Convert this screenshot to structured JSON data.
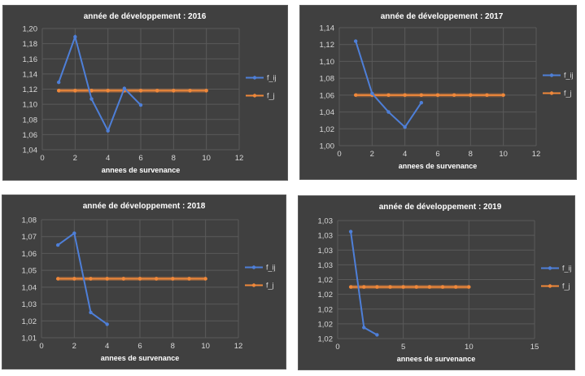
{
  "colors": {
    "f_ij": "#4e7fd8",
    "f_j": "#f0883a"
  },
  "chart_data": [
    {
      "type": "line",
      "title": "année de développement : 2016",
      "xlabel": "annees de survenance",
      "ylabel": "",
      "xlim": [
        0,
        12
      ],
      "ylim": [
        1.04,
        1.2
      ],
      "x_ticks": [
        "0",
        "2",
        "4",
        "6",
        "8",
        "10",
        "12"
      ],
      "y_ticks": [
        "1,04",
        "1,06",
        "1,08",
        "1,10",
        "1,12",
        "1,14",
        "1,16",
        "1,18",
        "1,20"
      ],
      "legend_position": "right",
      "series": [
        {
          "name": "f_ij",
          "x": [
            1,
            2,
            3,
            4,
            5,
            6
          ],
          "y": [
            1.129,
            1.189,
            1.107,
            1.065,
            1.121,
            1.099
          ]
        },
        {
          "name": "f_j",
          "x": [
            1,
            2,
            3,
            4,
            5,
            6,
            7,
            8,
            9,
            10
          ],
          "y": [
            1.118,
            1.118,
            1.118,
            1.118,
            1.118,
            1.118,
            1.118,
            1.118,
            1.118,
            1.118
          ]
        }
      ]
    },
    {
      "type": "line",
      "title": "année de développement : 2017",
      "xlabel": "annees de survenance",
      "ylabel": "",
      "xlim": [
        0,
        12
      ],
      "ylim": [
        1.0,
        1.14
      ],
      "x_ticks": [
        "0",
        "2",
        "4",
        "6",
        "8",
        "10",
        "12"
      ],
      "y_ticks": [
        "1,00",
        "1,02",
        "1,04",
        "1,06",
        "1,08",
        "1,10",
        "1,12",
        "1,14"
      ],
      "legend_position": "right",
      "series": [
        {
          "name": "f_ij",
          "x": [
            1,
            2,
            3,
            4,
            5
          ],
          "y": [
            1.124,
            1.062,
            1.04,
            1.022,
            1.051
          ]
        },
        {
          "name": "f_j",
          "x": [
            1,
            2,
            3,
            4,
            5,
            6,
            7,
            8,
            9,
            10
          ],
          "y": [
            1.06,
            1.06,
            1.06,
            1.06,
            1.06,
            1.06,
            1.06,
            1.06,
            1.06,
            1.06
          ]
        }
      ]
    },
    {
      "type": "line",
      "title": "année de développement : 2018",
      "xlabel": "annees de survenance",
      "ylabel": "",
      "xlim": [
        0,
        12
      ],
      "ylim": [
        1.01,
        1.08
      ],
      "x_ticks": [
        "0",
        "2",
        "4",
        "6",
        "8",
        "10",
        "12"
      ],
      "y_ticks": [
        "1,01",
        "1,02",
        "1,03",
        "1,04",
        "1,05",
        "1,06",
        "1,07",
        "1,08"
      ],
      "legend_position": "right",
      "series": [
        {
          "name": "f_ij",
          "x": [
            1,
            2,
            3,
            4
          ],
          "y": [
            1.065,
            1.072,
            1.025,
            1.018
          ]
        },
        {
          "name": "f_j",
          "x": [
            1,
            2,
            3,
            4,
            5,
            6,
            7,
            8,
            9,
            10
          ],
          "y": [
            1.045,
            1.045,
            1.045,
            1.045,
            1.045,
            1.045,
            1.045,
            1.045,
            1.045,
            1.045
          ]
        }
      ]
    },
    {
      "type": "line",
      "title": "année de développement : 2019",
      "xlabel": "annees de survenance",
      "ylabel": "",
      "xlim": [
        0,
        15
      ],
      "ylim": [
        1.015,
        1.031
      ],
      "x_ticks": [
        "0",
        "5",
        "10",
        "15"
      ],
      "y_ticks": [
        "1,02",
        "1,02",
        "1,02",
        "1,02",
        "1,02",
        "1,03",
        "1,03",
        "1,03",
        "1,03"
      ],
      "legend_position": "right",
      "series": [
        {
          "name": "f_ij",
          "x": [
            1,
            2,
            3
          ],
          "y": [
            1.0295,
            1.0165,
            1.0155
          ]
        },
        {
          "name": "f_j",
          "x": [
            1,
            2,
            3,
            4,
            5,
            6,
            7,
            8,
            9,
            10
          ],
          "y": [
            1.022,
            1.022,
            1.022,
            1.022,
            1.022,
            1.022,
            1.022,
            1.022,
            1.022,
            1.022
          ]
        }
      ]
    }
  ]
}
